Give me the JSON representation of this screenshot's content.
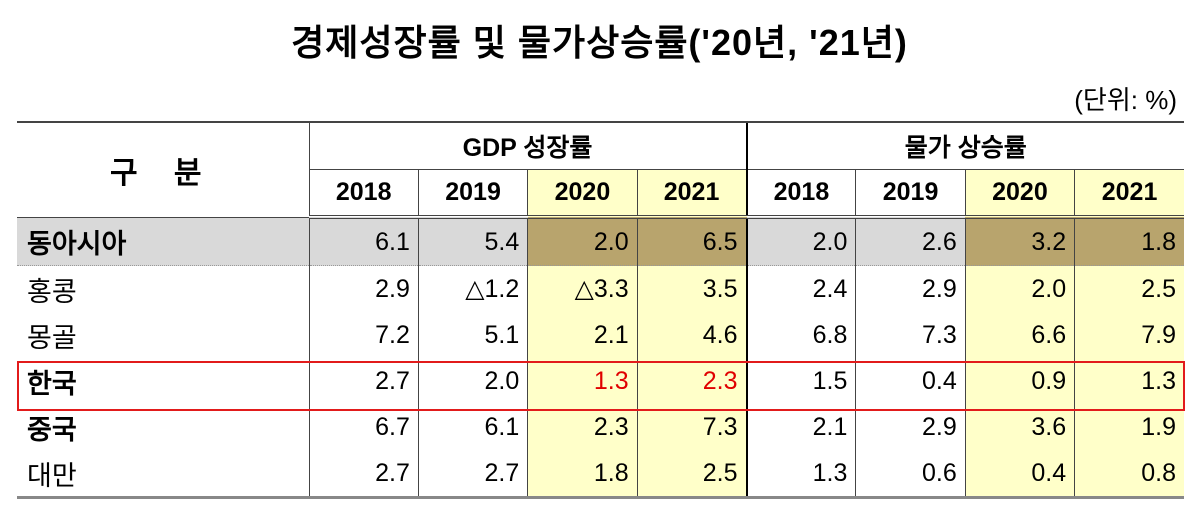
{
  "title": "경제성장률 및 물가상승률('20년, '21년)",
  "unit": "(단위: %)",
  "header": {
    "category": "구 분",
    "gdp": "GDP 성장률",
    "cpi": "물가 상승률",
    "years": [
      "2018",
      "2019",
      "2020",
      "2021",
      "2018",
      "2019",
      "2020",
      "2021"
    ]
  },
  "rows": [
    {
      "name": "동아시아",
      "values": [
        "6.1",
        "5.4",
        "2.0",
        "6.5",
        "2.0",
        "2.6",
        "3.2",
        "1.8"
      ]
    },
    {
      "name": "홍콩",
      "values": [
        "2.9",
        "△1.2",
        "△3.3",
        "3.5",
        "2.4",
        "2.9",
        "2.0",
        "2.5"
      ]
    },
    {
      "name": "몽골",
      "values": [
        "7.2",
        "5.1",
        "2.1",
        "4.6",
        "6.8",
        "7.3",
        "6.6",
        "7.9"
      ]
    },
    {
      "name": "한국",
      "values": [
        "2.7",
        "2.0",
        "1.3",
        "2.3",
        "1.5",
        "0.4",
        "0.9",
        "1.3"
      ]
    },
    {
      "name": "중국",
      "values": [
        "6.7",
        "6.1",
        "2.3",
        "7.3",
        "2.1",
        "2.9",
        "3.6",
        "1.9"
      ]
    },
    {
      "name": "대만",
      "values": [
        "2.7",
        "2.7",
        "1.8",
        "2.5",
        "1.3",
        "0.6",
        "0.4",
        "0.8"
      ]
    }
  ],
  "colors": {
    "highlight_year": "#ffffc9",
    "region_row": "#d9d9d9",
    "region_highlight": "#b8a46d",
    "korea_box": "#e21b1b",
    "korea_value": "#e00000"
  }
}
